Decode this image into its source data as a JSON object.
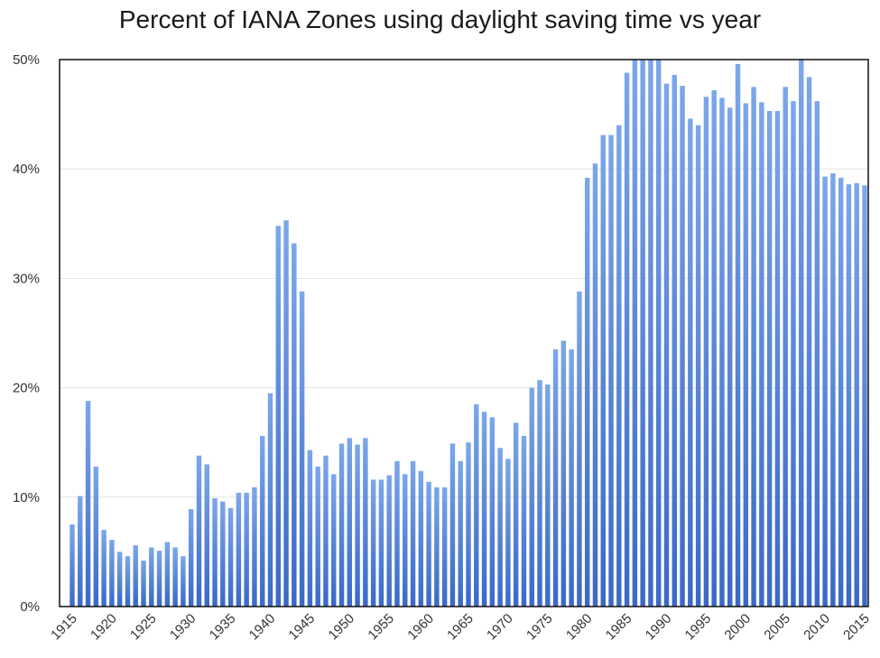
{
  "colors": {
    "bar_top": "#7ba7ea",
    "bar_bottom": "#3b68c7",
    "grid": "#e3e3e3",
    "frame": "#111111"
  },
  "chart_data": {
    "type": "bar",
    "title": "Percent of IANA Zones using daylight saving time vs year",
    "xlabel": "",
    "ylabel": "",
    "ylim": [
      0,
      50
    ],
    "y_ticks": [
      0,
      10,
      20,
      30,
      40,
      50
    ],
    "y_tick_labels": [
      "0%",
      "10%",
      "20%",
      "30%",
      "40%",
      "50%"
    ],
    "x_tick_labels": [
      "1915",
      "1920",
      "1925",
      "1930",
      "1935",
      "1940",
      "1945",
      "1950",
      "1955",
      "1960",
      "1965",
      "1970",
      "1975",
      "1980",
      "1985",
      "1990",
      "1995",
      "2000",
      "2005",
      "2010",
      "2015"
    ],
    "grid": true,
    "legend": "none",
    "categories": [
      1915,
      1916,
      1917,
      1918,
      1919,
      1920,
      1921,
      1922,
      1923,
      1924,
      1925,
      1926,
      1927,
      1928,
      1929,
      1930,
      1931,
      1932,
      1933,
      1934,
      1935,
      1936,
      1937,
      1938,
      1939,
      1940,
      1941,
      1942,
      1943,
      1944,
      1945,
      1946,
      1947,
      1948,
      1949,
      1950,
      1951,
      1952,
      1953,
      1954,
      1955,
      1956,
      1957,
      1958,
      1959,
      1960,
      1961,
      1962,
      1963,
      1964,
      1965,
      1966,
      1967,
      1968,
      1969,
      1970,
      1971,
      1972,
      1973,
      1974,
      1975,
      1976,
      1977,
      1978,
      1979,
      1980,
      1981,
      1982,
      1983,
      1984,
      1985,
      1986,
      1987,
      1988,
      1989,
      1990,
      1991,
      1992,
      1993,
      1994,
      1995,
      1996,
      1997,
      1998,
      1999,
      2000,
      2001,
      2002,
      2003,
      2004,
      2005,
      2006,
      2007,
      2008,
      2009,
      2010,
      2011,
      2012,
      2013,
      2014,
      2015
    ],
    "values": [
      7.5,
      10.1,
      18.8,
      12.8,
      7.0,
      6.1,
      5.0,
      4.6,
      5.6,
      4.2,
      5.4,
      5.1,
      5.9,
      5.4,
      4.6,
      8.9,
      13.8,
      13.0,
      9.9,
      9.6,
      9.0,
      10.4,
      10.4,
      10.9,
      15.6,
      19.5,
      34.8,
      35.3,
      33.2,
      28.8,
      14.3,
      12.8,
      13.8,
      12.1,
      14.9,
      15.4,
      14.8,
      15.4,
      11.6,
      11.6,
      12.0,
      13.3,
      12.1,
      13.3,
      12.4,
      11.4,
      10.9,
      10.9,
      14.9,
      13.3,
      15.0,
      18.5,
      17.8,
      17.3,
      14.5,
      13.5,
      16.8,
      15.6,
      20.0,
      20.7,
      20.3,
      23.5,
      24.3,
      23.5,
      28.8,
      39.2,
      40.5,
      43.1,
      43.1,
      44.0,
      48.8,
      50.0,
      50.0,
      50.0,
      50.0,
      47.8,
      48.6,
      47.6,
      44.6,
      44.0,
      46.6,
      47.2,
      46.5,
      45.6,
      49.6,
      46.0,
      47.5,
      46.1,
      45.3,
      45.3,
      47.5,
      46.2,
      50.0,
      48.4,
      46.2,
      39.3,
      39.6,
      39.2,
      38.6,
      38.7,
      38.5
    ]
  }
}
